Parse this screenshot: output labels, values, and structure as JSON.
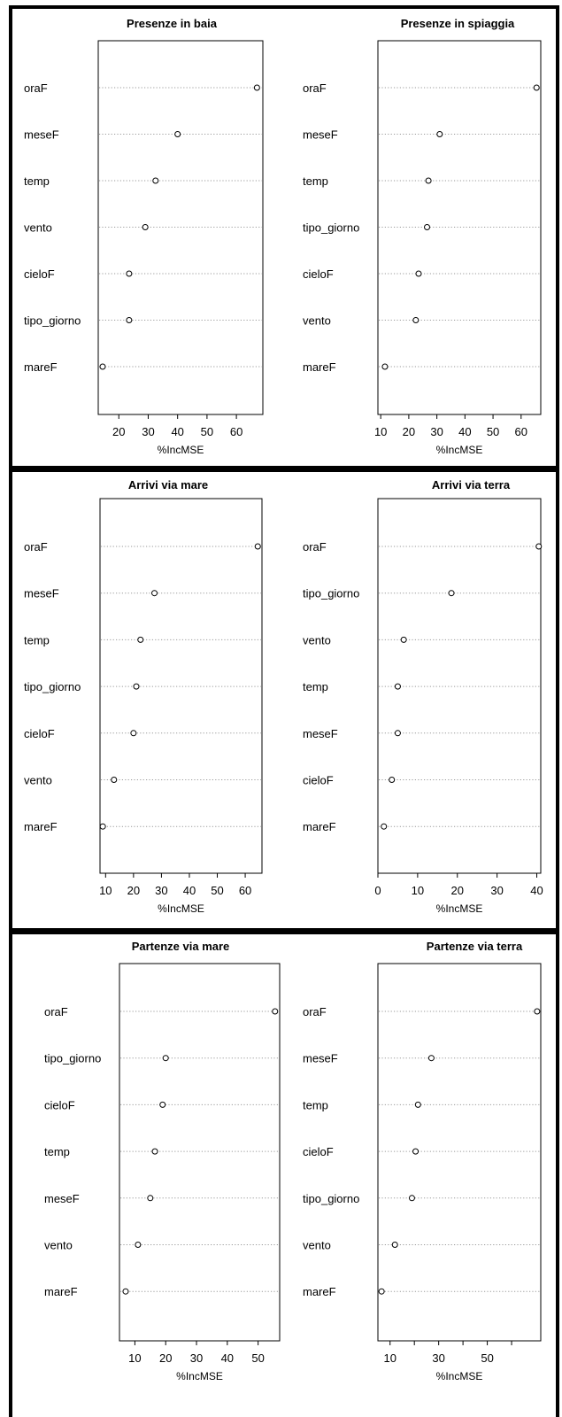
{
  "chart_data": [
    {
      "type": "scatter",
      "title": "Presenze in baia",
      "xlabel": "%IncMSE",
      "xlim": [
        13,
        69
      ],
      "xticks": [
        20,
        30,
        40,
        50,
        60
      ],
      "grid": "dotted row lines",
      "categories": [
        "oraF",
        "meseF",
        "temp",
        "vento",
        "cieloF",
        "tipo_giorno",
        "mareF"
      ],
      "values": [
        67,
        40,
        32.5,
        29,
        23.5,
        23.5,
        14.5
      ]
    },
    {
      "type": "scatter",
      "title": "Presenze in spiaggia",
      "xlabel": "%IncMSE",
      "xlim": [
        9,
        67
      ],
      "xticks": [
        10,
        20,
        30,
        40,
        50,
        60
      ],
      "grid": "dotted row lines",
      "categories": [
        "oraF",
        "meseF",
        "temp",
        "tipo_giorno",
        "cieloF",
        "vento",
        "mareF"
      ],
      "values": [
        65.5,
        31,
        27,
        26.5,
        23.5,
        22.5,
        11.5
      ]
    },
    {
      "type": "scatter",
      "title": "Arrivi via mare",
      "xlabel": "%IncMSE",
      "xlim": [
        8,
        66
      ],
      "xticks": [
        10,
        20,
        30,
        40,
        50,
        60
      ],
      "grid": "dotted row lines",
      "categories": [
        "oraF",
        "meseF",
        "temp",
        "tipo_giorno",
        "cieloF",
        "vento",
        "mareF"
      ],
      "values": [
        64.5,
        27.5,
        22.5,
        21,
        20,
        13,
        9
      ]
    },
    {
      "type": "scatter",
      "title": "Arrivi via terra",
      "xlabel": "%IncMSE",
      "xlim": [
        0,
        41
      ],
      "xticks": [
        0,
        10,
        20,
        30,
        40
      ],
      "grid": "dotted row lines",
      "categories": [
        "oraF",
        "tipo_giorno",
        "vento",
        "temp",
        "meseF",
        "cieloF",
        "mareF"
      ],
      "values": [
        40.5,
        18.5,
        6.5,
        5,
        5,
        3.5,
        1.5
      ]
    },
    {
      "type": "scatter",
      "title": "Partenze via mare",
      "xlabel": "%IncMSE",
      "xlim": [
        5,
        57
      ],
      "xticks": [
        10,
        20,
        30,
        40,
        50
      ],
      "grid": "dotted row lines",
      "categories": [
        "oraF",
        "tipo_giorno",
        "cieloF",
        "temp",
        "meseF",
        "vento",
        "mareF"
      ],
      "values": [
        55.5,
        20,
        19,
        16.5,
        15,
        11,
        7
      ]
    },
    {
      "type": "scatter",
      "title": "Partenze via terra",
      "xlabel": "%IncMSE",
      "xlim": [
        5,
        72
      ],
      "xticks": [
        10,
        30,
        50
      ],
      "minor_xticks": [
        20,
        40,
        60
      ],
      "grid": "dotted row lines",
      "categories": [
        "oraF",
        "meseF",
        "temp",
        "cieloF",
        "tipo_giorno",
        "vento",
        "mareF"
      ],
      "values": [
        70.5,
        27,
        21.5,
        20.5,
        19,
        12,
        6.5
      ]
    }
  ]
}
